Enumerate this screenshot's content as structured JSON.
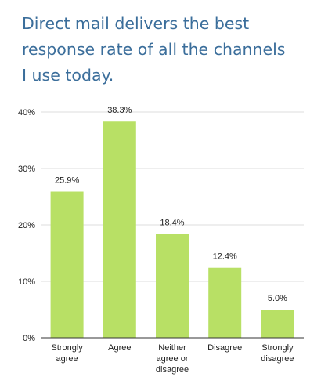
{
  "chart_data": {
    "type": "bar",
    "title_lines": [
      "Direct mail delivers the best",
      "response rate of all the channels",
      "I use today."
    ],
    "categories": [
      [
        "Strongly",
        "agree"
      ],
      [
        "Agree"
      ],
      [
        "Neither",
        "agree or",
        "disagree"
      ],
      [
        "Disagree"
      ],
      [
        "Strongly",
        "disagree"
      ]
    ],
    "values": [
      25.9,
      38.3,
      18.4,
      12.4,
      5.0
    ],
    "data_labels": [
      "25.9%",
      "38.3%",
      "18.4%",
      "12.4%",
      "5.0%"
    ],
    "ylim": [
      0,
      40
    ],
    "yticks": [
      0,
      10,
      20,
      30,
      40
    ],
    "ytick_labels": [
      "0%",
      "10%",
      "20%",
      "30%",
      "40%"
    ],
    "grid": true,
    "colors": {
      "bar": "#b8e065",
      "grid": "#dddddd",
      "axis": "#333333",
      "title": "#3b6e9b"
    }
  }
}
